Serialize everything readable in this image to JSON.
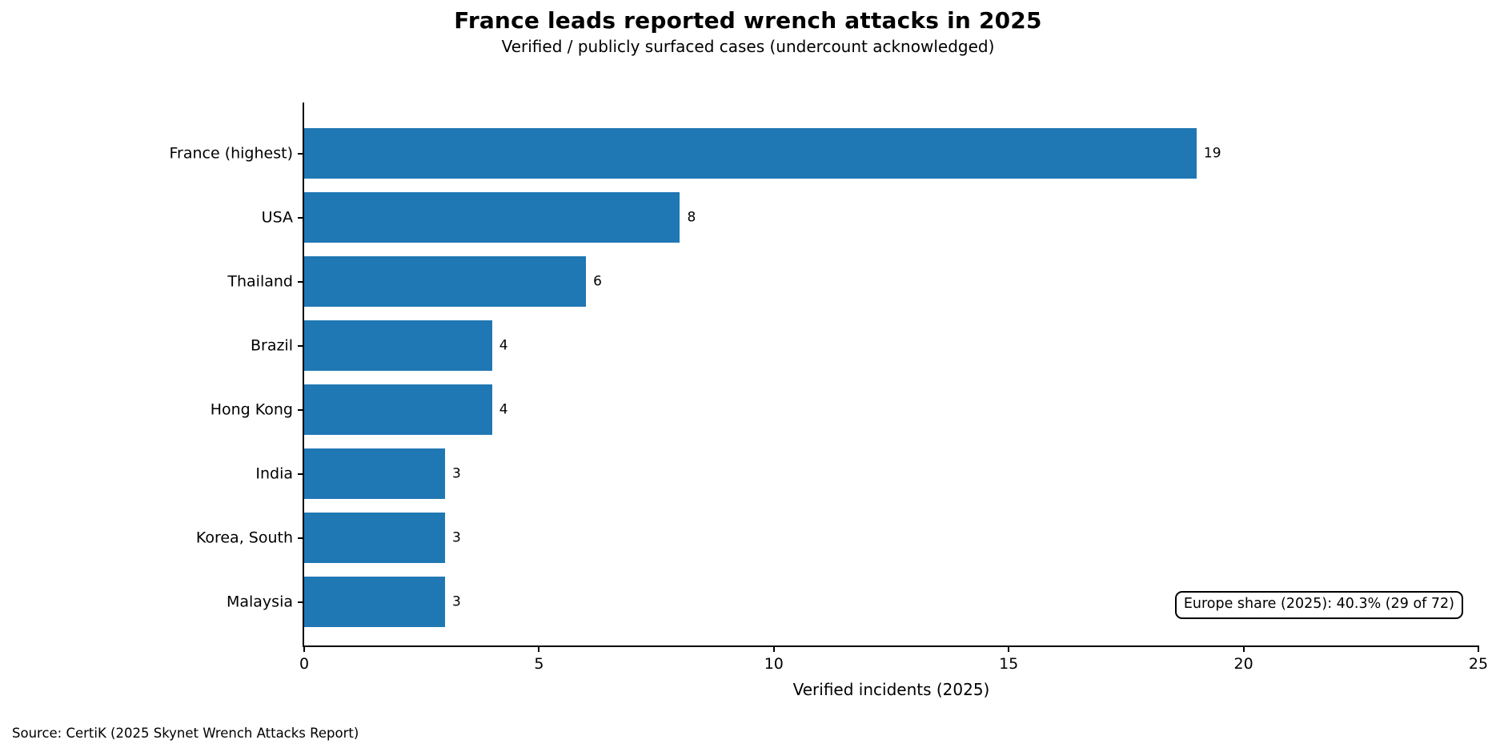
{
  "figure": {
    "source": "Source: CertiK (2025 Skynet Wrench Attacks Report)"
  },
  "chart_data": {
    "type": "bar",
    "orientation": "horizontal",
    "title": "France leads reported wrench attacks in 2025",
    "subtitle": "Verified / publicly surfaced cases (undercount acknowledged)",
    "categories": [
      "France (highest)",
      "USA",
      "Thailand",
      "Brazil",
      "Hong Kong",
      "India",
      "Korea, South",
      "Malaysia"
    ],
    "values": [
      19,
      8,
      6,
      4,
      4,
      3,
      3,
      3
    ],
    "xlabel": "Verified incidents (2025)",
    "ylabel": "",
    "xlim": [
      0,
      25
    ],
    "xticks": [
      0,
      5,
      10,
      15,
      20,
      25
    ],
    "grid": false,
    "legend": null,
    "value_labels_shown": true,
    "bar_color": "#1f77b4",
    "annotation": "Europe share (2025): 40.3% (29 of 72)"
  }
}
